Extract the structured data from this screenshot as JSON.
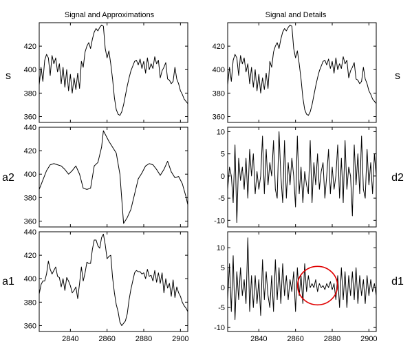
{
  "figure": {
    "title_left": "Signal and Approximations",
    "title_right": "Signal and Details"
  },
  "colors": {
    "axes": "#000000",
    "series": "#000000",
    "highlight_circle": "#e00000",
    "background": "#ffffff"
  },
  "chart_data": [
    {
      "type": "line",
      "row_label": "s",
      "xlim": [
        2823,
        2904
      ],
      "ylim": [
        355,
        440
      ],
      "yticks": [
        360,
        380,
        400,
        420
      ],
      "xticks": [
        2840,
        2860,
        2880,
        2900
      ],
      "x_tick_labels_shown": false,
      "grid": false,
      "series": [
        {
          "x": [
            2823,
            2824,
            2825,
            2826,
            2827,
            2828,
            2829,
            2830,
            2831,
            2832,
            2833,
            2834,
            2835,
            2836,
            2837,
            2838,
            2839,
            2840,
            2841,
            2842,
            2843,
            2844,
            2845,
            2846,
            2847,
            2848,
            2849,
            2850,
            2851,
            2852,
            2853,
            2854,
            2855,
            2856,
            2857,
            2858,
            2859,
            2860,
            2861,
            2862,
            2863,
            2864,
            2865,
            2866,
            2867,
            2868,
            2869,
            2870,
            2871,
            2872,
            2873,
            2874,
            2875,
            2876,
            2877,
            2878,
            2879,
            2880,
            2881,
            2882,
            2883,
            2884,
            2885,
            2886,
            2887,
            2888,
            2889,
            2890,
            2891,
            2892,
            2893,
            2894,
            2895,
            2896,
            2897,
            2898,
            2899,
            2900,
            2901,
            2902,
            2903,
            2904
          ],
          "values": [
            387,
            402,
            390,
            408,
            413,
            410,
            395,
            412,
            405,
            410,
            398,
            405,
            388,
            402,
            385,
            400,
            382,
            396,
            380,
            393,
            383,
            397,
            384,
            407,
            402,
            415,
            420,
            423,
            418,
            426,
            432,
            435,
            433,
            436,
            438,
            437,
            418,
            410,
            416,
            405,
            392,
            376,
            366,
            362,
            361,
            364,
            370,
            378,
            386,
            393,
            399,
            403,
            407,
            408,
            404,
            409,
            401,
            407,
            397,
            410,
            400,
            405,
            401,
            411,
            405,
            408,
            393,
            399,
            402,
            406,
            392,
            391,
            388,
            390,
            402,
            392,
            388,
            382,
            379,
            375,
            373,
            371
          ]
        }
      ]
    },
    {
      "type": "line",
      "row_label": "a2",
      "xlim": [
        2823,
        2904
      ],
      "ylim": [
        355,
        440
      ],
      "yticks": [
        360,
        380,
        400,
        420,
        440
      ],
      "xticks": [
        2840,
        2860,
        2880,
        2900
      ],
      "x_tick_labels_shown": false,
      "grid": false,
      "series": [
        {
          "x": [
            2823,
            2825,
            2827,
            2829,
            2831,
            2833,
            2835,
            2837,
            2839,
            2841,
            2843,
            2845,
            2847,
            2849,
            2851,
            2853,
            2855,
            2857,
            2858,
            2859,
            2861,
            2863,
            2865,
            2867,
            2868,
            2869,
            2871,
            2873,
            2875,
            2877,
            2879,
            2881,
            2883,
            2885,
            2887,
            2889,
            2891,
            2893,
            2895,
            2897,
            2899,
            2901,
            2903,
            2904
          ],
          "values": [
            387,
            395,
            403,
            408,
            409,
            408,
            407,
            404,
            400,
            403,
            407,
            400,
            388,
            387,
            388,
            407,
            410,
            423,
            437,
            434,
            428,
            423,
            418,
            400,
            379,
            358,
            363,
            370,
            383,
            396,
            401,
            407,
            409,
            408,
            404,
            399,
            404,
            411,
            402,
            397,
            398,
            392,
            381,
            374
          ]
        }
      ]
    },
    {
      "type": "line",
      "row_label": "a1",
      "xlim": [
        2823,
        2904
      ],
      "ylim": [
        355,
        440
      ],
      "yticks": [
        360,
        380,
        400,
        420,
        440
      ],
      "xticks": [
        2840,
        2860,
        2880,
        2900
      ],
      "x_tick_labels_shown": true,
      "grid": false,
      "series": [
        {
          "x": [
            2823,
            2824,
            2825,
            2826,
            2827,
            2828,
            2829,
            2830,
            2831,
            2832,
            2833,
            2834,
            2835,
            2836,
            2837,
            2838,
            2839,
            2840,
            2841,
            2842,
            2843,
            2844,
            2845,
            2846,
            2847,
            2848,
            2849,
            2850,
            2851,
            2852,
            2853,
            2854,
            2855,
            2856,
            2857,
            2858,
            2859,
            2860,
            2861,
            2862,
            2863,
            2864,
            2865,
            2866,
            2867,
            2868,
            2869,
            2870,
            2871,
            2872,
            2873,
            2874,
            2875,
            2876,
            2877,
            2878,
            2879,
            2880,
            2881,
            2882,
            2883,
            2884,
            2885,
            2886,
            2887,
            2888,
            2889,
            2890,
            2891,
            2892,
            2893,
            2894,
            2895,
            2896,
            2897,
            2898,
            2899,
            2900,
            2901,
            2902,
            2903,
            2904
          ],
          "values": [
            387,
            395,
            398,
            398,
            404,
            415,
            408,
            404,
            407,
            410,
            402,
            401,
            393,
            400,
            390,
            401,
            398,
            394,
            388,
            390,
            393,
            383,
            396,
            410,
            398,
            405,
            414,
            413,
            413,
            425,
            433,
            433,
            428,
            426,
            435,
            438,
            429,
            417,
            419,
            420,
            401,
            388,
            378,
            372,
            363,
            360,
            362,
            364,
            370,
            382,
            391,
            398,
            405,
            407,
            406,
            406,
            404,
            405,
            400,
            408,
            402,
            403,
            398,
            407,
            397,
            405,
            396,
            405,
            388,
            400,
            392,
            396,
            385,
            399,
            384,
            393,
            388,
            385,
            380,
            377,
            375,
            372
          ]
        }
      ]
    },
    {
      "type": "line",
      "row_label": "s",
      "xlim": [
        2823,
        2904
      ],
      "ylim": [
        355,
        440
      ],
      "yticks": [
        360,
        380,
        400,
        420
      ],
      "xticks": [
        2840,
        2860,
        2880,
        2900
      ],
      "x_tick_labels_shown": false,
      "grid": false,
      "series": [
        {
          "x": [
            2823,
            2824,
            2825,
            2826,
            2827,
            2828,
            2829,
            2830,
            2831,
            2832,
            2833,
            2834,
            2835,
            2836,
            2837,
            2838,
            2839,
            2840,
            2841,
            2842,
            2843,
            2844,
            2845,
            2846,
            2847,
            2848,
            2849,
            2850,
            2851,
            2852,
            2853,
            2854,
            2855,
            2856,
            2857,
            2858,
            2859,
            2860,
            2861,
            2862,
            2863,
            2864,
            2865,
            2866,
            2867,
            2868,
            2869,
            2870,
            2871,
            2872,
            2873,
            2874,
            2875,
            2876,
            2877,
            2878,
            2879,
            2880,
            2881,
            2882,
            2883,
            2884,
            2885,
            2886,
            2887,
            2888,
            2889,
            2890,
            2891,
            2892,
            2893,
            2894,
            2895,
            2896,
            2897,
            2898,
            2899,
            2900,
            2901,
            2902,
            2903,
            2904
          ],
          "values": [
            387,
            402,
            390,
            408,
            413,
            410,
            395,
            412,
            405,
            410,
            398,
            405,
            388,
            402,
            385,
            400,
            382,
            396,
            380,
            393,
            383,
            397,
            384,
            407,
            402,
            415,
            420,
            423,
            418,
            426,
            432,
            435,
            433,
            436,
            438,
            437,
            418,
            410,
            416,
            405,
            392,
            376,
            366,
            362,
            361,
            364,
            370,
            378,
            386,
            393,
            399,
            403,
            407,
            408,
            404,
            409,
            401,
            407,
            397,
            410,
            400,
            405,
            401,
            411,
            405,
            408,
            393,
            399,
            402,
            406,
            392,
            391,
            388,
            390,
            402,
            392,
            388,
            382,
            379,
            375,
            373,
            371
          ]
        }
      ]
    },
    {
      "type": "line",
      "row_label": "d2",
      "xlim": [
        2823,
        2904
      ],
      "ylim": [
        -11.5,
        11
      ],
      "yticks": [
        -10,
        -5,
        0,
        5,
        10
      ],
      "xticks": [
        2840,
        2860,
        2880,
        2900
      ],
      "x_tick_labels_shown": false,
      "grid": false,
      "series": [
        {
          "x": [
            2823,
            2824,
            2825,
            2826,
            2827,
            2828,
            2829,
            2830,
            2831,
            2832,
            2833,
            2834,
            2835,
            2836,
            2837,
            2838,
            2839,
            2840,
            2841,
            2842,
            2843,
            2844,
            2845,
            2846,
            2847,
            2848,
            2849,
            2850,
            2851,
            2852,
            2853,
            2854,
            2855,
            2856,
            2857,
            2858,
            2859,
            2860,
            2861,
            2862,
            2863,
            2864,
            2865,
            2866,
            2867,
            2868,
            2869,
            2870,
            2871,
            2872,
            2873,
            2874,
            2875,
            2876,
            2877,
            2878,
            2879,
            2880,
            2881,
            2882,
            2883,
            2884,
            2885,
            2886,
            2887,
            2888,
            2889,
            2890,
            2891,
            2892,
            2893,
            2894,
            2895,
            2896,
            2897,
            2898,
            2899,
            2900,
            2901,
            2902,
            2903,
            2904
          ],
          "values": [
            -3,
            2,
            0,
            -6,
            7,
            -10.5,
            4,
            -1,
            2,
            -3,
            4,
            -5,
            6,
            0,
            5,
            -4,
            1,
            -3,
            0,
            9,
            -4,
            6,
            -2,
            3,
            0,
            8,
            -3,
            -5,
            10,
            0,
            -6,
            8,
            -5,
            3,
            -2,
            4,
            0,
            -7,
            9,
            -4,
            2,
            -6,
            1,
            -2,
            -4,
            8,
            -6,
            3,
            -2,
            5,
            -3,
            1,
            3,
            -5,
            0,
            6,
            -4,
            2,
            -3,
            0,
            7,
            -5,
            4,
            -6,
            8,
            -3,
            2,
            0,
            -9,
            7,
            -2,
            5,
            -4,
            9,
            -3,
            -5,
            6,
            -2,
            3,
            -4,
            5,
            0
          ]
        }
      ]
    },
    {
      "type": "line",
      "row_label": "d1",
      "xlim": [
        2823,
        2904
      ],
      "ylim": [
        -11,
        14
      ],
      "yticks": [
        -10,
        -5,
        0,
        5,
        10
      ],
      "xticks": [
        2840,
        2860,
        2880,
        2900
      ],
      "x_tick_labels_shown": true,
      "grid": false,
      "series": [
        {
          "x": [
            2823,
            2824,
            2825,
            2826,
            2827,
            2828,
            2829,
            2830,
            2831,
            2832,
            2833,
            2834,
            2835,
            2836,
            2837,
            2838,
            2839,
            2840,
            2841,
            2842,
            2843,
            2844,
            2845,
            2846,
            2847,
            2848,
            2849,
            2850,
            2851,
            2852,
            2853,
            2854,
            2855,
            2856,
            2857,
            2858,
            2859,
            2860,
            2861,
            2862,
            2863,
            2864,
            2865,
            2866,
            2867,
            2868,
            2869,
            2870,
            2871,
            2872,
            2873,
            2874,
            2875,
            2876,
            2877,
            2878,
            2879,
            2880,
            2881,
            2882,
            2883,
            2884,
            2885,
            2886,
            2887,
            2888,
            2889,
            2890,
            2891,
            2892,
            2893,
            2894,
            2895,
            2896,
            2897,
            2898,
            2899,
            2900,
            2901,
            2902,
            2903,
            2904
          ],
          "values": [
            -3,
            6,
            -6,
            8,
            -8,
            4,
            -3,
            5,
            -2,
            2,
            -4,
            12.5,
            -6,
            3,
            -5,
            3,
            -4,
            2,
            -7,
            7,
            -3,
            4,
            -2,
            -5,
            3,
            -6,
            7,
            -3,
            5,
            -4,
            6,
            -2,
            3,
            -3,
            2,
            -1,
            4,
            -6,
            5,
            -2,
            3,
            -4,
            6,
            -1,
            3,
            0,
            1,
            0,
            2,
            -1,
            1,
            0,
            0.5,
            -0.5,
            1,
            0,
            1.5,
            -0.5,
            1,
            -3,
            3,
            -5,
            5,
            -3,
            4,
            -5,
            3,
            -2,
            4,
            -3,
            5,
            -4,
            3,
            -2,
            2,
            -4,
            3,
            -2,
            2,
            -1,
            1,
            -2
          ]
        }
      ]
    }
  ],
  "row_labels": {
    "left": [
      "s",
      "a2",
      "a1"
    ],
    "right": [
      "s",
      "d2",
      "d1"
    ]
  },
  "x_tick_labels": [
    "2840",
    "2860",
    "2880",
    "2900"
  ],
  "annotation": {
    "type": "circle",
    "panel": 5,
    "cx": 2872,
    "cy": 0.5,
    "color": "#e00000"
  }
}
